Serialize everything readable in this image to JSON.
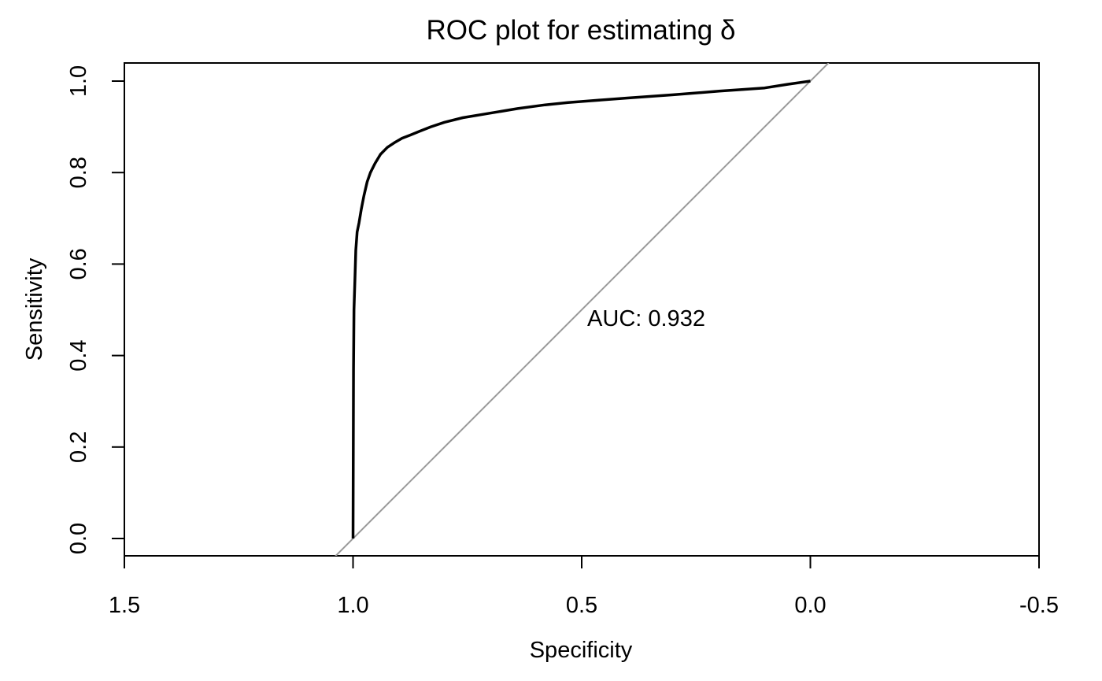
{
  "chart_data": {
    "type": "line",
    "title": "ROC plot for estimating δ",
    "xlabel": "Specificity",
    "ylabel": "Sensitivity",
    "x_reversed": true,
    "xlim": [
      1.5,
      -0.5
    ],
    "ylim": [
      0.0,
      1.0
    ],
    "xticks": [
      1.5,
      1.0,
      0.5,
      0.0,
      -0.5
    ],
    "xtick_labels": [
      "1.5",
      "1.0",
      "0.5",
      "0.0",
      "-0.5"
    ],
    "yticks": [
      0.0,
      0.2,
      0.4,
      0.6,
      0.8,
      1.0
    ],
    "ytick_labels": [
      "0.0",
      "0.2",
      "0.4",
      "0.6",
      "0.8",
      "1.0"
    ],
    "grid": false,
    "annotation": {
      "text": "AUC: 0.932",
      "x": 0.5,
      "y": 0.48
    },
    "series": [
      {
        "color": "#000000",
        "x": [
          1.0,
          0.999,
          0.998,
          0.996,
          0.994,
          0.991,
          0.987,
          0.982,
          0.976,
          0.969,
          0.962,
          0.952,
          0.94,
          0.925,
          0.91,
          0.893,
          0.875,
          0.855,
          0.83,
          0.8,
          0.76,
          0.7,
          0.64,
          0.58,
          0.53,
          0.48,
          0.4,
          0.3,
          0.2,
          0.1,
          0.05,
          0.0
        ],
        "y": [
          0.0,
          0.37,
          0.5,
          0.56,
          0.63,
          0.67,
          0.69,
          0.72,
          0.75,
          0.78,
          0.8,
          0.82,
          0.84,
          0.855,
          0.865,
          0.875,
          0.882,
          0.89,
          0.9,
          0.91,
          0.92,
          0.93,
          0.94,
          0.948,
          0.953,
          0.957,
          0.963,
          0.97,
          0.978,
          0.985,
          0.993,
          1.0
        ]
      },
      {
        "color": "#999999",
        "x": [
          1.04,
          -0.04
        ],
        "y": [
          -0.04,
          1.04
        ]
      }
    ]
  }
}
